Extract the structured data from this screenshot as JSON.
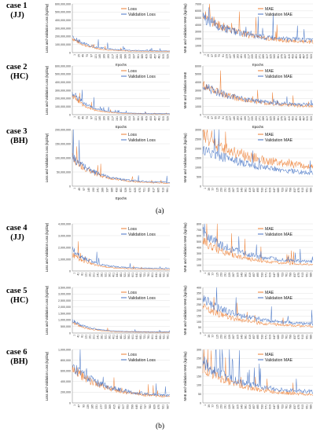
{
  "colors": {
    "train": "#ED7D31",
    "validation": "#4472C4",
    "grid": "#D9D9D9",
    "axis": "#808080"
  },
  "panel_labels": [
    "(a)",
    "(b)"
  ],
  "cases": [
    {
      "title": "case 1",
      "code": "(JJ)"
    },
    {
      "title": "case 2",
      "code": "(HC)"
    },
    {
      "title": "case 3",
      "code": "(BH)"
    },
    {
      "title": "case 4",
      "code": "(JJ)"
    },
    {
      "title": "case 5",
      "code": "(HC)"
    },
    {
      "title": "case 6",
      "code": "(BH)"
    }
  ],
  "chart_data": [
    {
      "type": "line",
      "case": "case 1",
      "metric": "loss",
      "xlabel": "Epochs",
      "ylabel": "Loss and Validation Loss (kg/day)",
      "yticks": [
        "600,000,000",
        "500,000,000",
        "400,000,000",
        "300,000,000",
        "200,000,000",
        "100,000,000",
        "0"
      ],
      "ylim": [
        0,
        600000000
      ],
      "xticks": [
        "1",
        "25",
        "49",
        "73",
        "97",
        "121",
        "145",
        "169",
        "193",
        "217",
        "241",
        "265",
        "289",
        "313",
        "337",
        "361",
        "385",
        "409",
        "433",
        "457",
        "481",
        "505",
        "529"
      ],
      "series": [
        {
          "name": "Loss",
          "start": 180000000,
          "end": 15000000,
          "decay": 6
        },
        {
          "name": "Validation Loss",
          "start": 190000000,
          "end": 20000000,
          "decay": 5
        }
      ],
      "legend_position": "top-right"
    },
    {
      "type": "line",
      "case": "case 1",
      "metric": "mae",
      "xlabel": "Epochs",
      "ylabel": "MAE and Validation MAE (kg/day)",
      "yticks": [
        "7000",
        "6000",
        "5000",
        "4000",
        "3000",
        "2000",
        "1000",
        "0"
      ],
      "ylim": [
        0,
        7000
      ],
      "xticks": [
        "1",
        "19",
        "37",
        "55",
        "73",
        "91",
        "109",
        "127",
        "145",
        "163",
        "181",
        "199",
        "217",
        "235",
        "253",
        "271",
        "289",
        "307",
        "325",
        "343",
        "361",
        "379",
        "397",
        "415",
        "433",
        "451",
        "469",
        "487",
        "505",
        "523"
      ],
      "series": [
        {
          "name": "MAE",
          "start": 5500,
          "end": 1300,
          "decay": 3
        },
        {
          "name": "Validation MAE",
          "start": 5000,
          "end": 1600,
          "decay": 3
        }
      ],
      "legend_position": "top-right"
    },
    {
      "type": "line",
      "case": "case 2",
      "metric": "loss",
      "xlabel": "Epochs",
      "ylabel": "Loss and Validation Loss (kg/day)",
      "yticks": [
        "600,000,000",
        "500,000,000",
        "400,000,000",
        "300,000,000",
        "200,000,000",
        "100,000,000",
        "0"
      ],
      "ylim": [
        0,
        600000000
      ],
      "xticks": [
        "1",
        "25",
        "49",
        "73",
        "97",
        "121",
        "145",
        "169",
        "193",
        "217",
        "241",
        "265",
        "289",
        "313",
        "337",
        "361",
        "385",
        "409",
        "433",
        "457",
        "481",
        "505",
        "529"
      ],
      "series": [
        {
          "name": "Loss",
          "start": 250000000,
          "end": 10000000,
          "decay": 7
        },
        {
          "name": "Validation Loss",
          "start": 280000000,
          "end": 12000000,
          "decay": 6
        }
      ],
      "legend_position": "top-right"
    },
    {
      "type": "line",
      "case": "case 2",
      "metric": "mae",
      "xlabel": "Epochs",
      "ylabel": "MAE and Validation MAE",
      "yticks": [
        "6000",
        "5000",
        "4000",
        "3000",
        "2000",
        "1000",
        "0"
      ],
      "ylim": [
        0,
        6000
      ],
      "xticks": [
        "1",
        "19",
        "37",
        "55",
        "73",
        "91",
        "109",
        "127",
        "145",
        "163",
        "181",
        "199",
        "217",
        "235",
        "253",
        "271",
        "289",
        "307",
        "325",
        "343",
        "361",
        "379",
        "397",
        "415",
        "433",
        "451",
        "469",
        "487",
        "505",
        "523"
      ],
      "series": [
        {
          "name": "MAE",
          "start": 3800,
          "end": 900,
          "decay": 3
        },
        {
          "name": "Validation MAE",
          "start": 3600,
          "end": 1100,
          "decay": 3
        }
      ],
      "legend_position": "top-right"
    },
    {
      "type": "line",
      "case": "case 3",
      "metric": "loss",
      "xlabel": "Epochs",
      "ylabel": "Loss and Validation Loss (kg/day)",
      "yticks": [
        "200,000,000",
        "150,000,000",
        "100,000,000",
        "50,000,000",
        "0"
      ],
      "ylim": [
        0,
        200000000
      ],
      "xticks": [
        "1",
        "49",
        "97",
        "145",
        "193",
        "241",
        "289",
        "337",
        "385",
        "433",
        "481",
        "529",
        "577",
        "625",
        "673",
        "721",
        "769",
        "817",
        "865",
        "913",
        "961"
      ],
      "series": [
        {
          "name": "Loss",
          "start": 100000000,
          "end": 9000000,
          "decay": 4
        },
        {
          "name": "Validation Loss",
          "start": 105000000,
          "end": 12000000,
          "decay": 4
        }
      ],
      "legend_position": "top-right"
    },
    {
      "type": "line",
      "case": "case 3",
      "metric": "mae",
      "xlabel": "",
      "ylabel": "MAE and Validation MAE (kg/day)",
      "yticks": [
        "3000",
        "2500",
        "2000",
        "1500",
        "1000",
        "500",
        "0"
      ],
      "ylim": [
        0,
        3000
      ],
      "xticks": [
        "1",
        "39",
        "77",
        "115",
        "153",
        "191",
        "229",
        "267",
        "305",
        "343",
        "381",
        "419",
        "457",
        "495",
        "533",
        "571",
        "609",
        "647",
        "685",
        "723",
        "761",
        "799",
        "837",
        "875",
        "913",
        "951",
        "989"
      ],
      "series": [
        {
          "name": "MAE",
          "start": 2600,
          "end": 800,
          "decay": 2
        },
        {
          "name": "Validation MAE",
          "start": 2000,
          "end": 500,
          "decay": 2
        }
      ],
      "legend_position": "top-right"
    },
    {
      "type": "line",
      "case": "case 4",
      "metric": "loss",
      "xlabel": "",
      "ylabel": "Loss and Validation Loss (kg/day)",
      "yticks": [
        "4,000,000",
        "3,000,000",
        "2,000,000",
        "1,000,000",
        "0"
      ],
      "ylim": [
        0,
        4000000
      ],
      "xticks": [
        "1",
        "41",
        "81",
        "121",
        "161",
        "201",
        "241",
        "281",
        "321",
        "361",
        "401",
        "441",
        "481",
        "521",
        "561",
        "601",
        "641",
        "681",
        "721",
        "761",
        "801",
        "841",
        "881",
        "921",
        "961"
      ],
      "series": [
        {
          "name": "Loss",
          "start": 1400000,
          "end": 120000,
          "decay": 5
        },
        {
          "name": "Validation Loss",
          "start": 1800000,
          "end": 200000,
          "decay": 5
        }
      ],
      "legend_position": "top-right"
    },
    {
      "type": "line",
      "case": "case 4",
      "metric": "mae",
      "xlabel": "",
      "ylabel": "MAE and Validation MAE (kg/day)",
      "yticks": [
        "800",
        "700",
        "600",
        "500",
        "400",
        "300",
        "200",
        "100",
        "0"
      ],
      "ylim": [
        0,
        800
      ],
      "xticks": [
        "1",
        "39",
        "77",
        "115",
        "153",
        "191",
        "229",
        "267",
        "305",
        "343",
        "381",
        "419",
        "457",
        "495",
        "533",
        "571",
        "609",
        "647",
        "685",
        "723",
        "761",
        "799",
        "837",
        "875",
        "913",
        "951",
        "989"
      ],
      "series": [
        {
          "name": "MAE",
          "start": 500,
          "end": 90,
          "decay": 3
        },
        {
          "name": "Validation MAE",
          "start": 650,
          "end": 130,
          "decay": 3
        }
      ],
      "legend_position": "top-right"
    },
    {
      "type": "line",
      "case": "case 5",
      "metric": "loss",
      "xlabel": "",
      "ylabel": "Loss and Validation Loss (kg/day)",
      "yticks": [
        "3,500,000",
        "3,000,000",
        "2,500,000",
        "2,000,000",
        "1,500,000",
        "1,000,000",
        "500,000",
        "0"
      ],
      "ylim": [
        0,
        3500000
      ],
      "xticks": [
        "1",
        "41",
        "81",
        "121",
        "161",
        "201",
        "241",
        "281",
        "321",
        "361",
        "401",
        "441",
        "481",
        "521",
        "561",
        "601",
        "641",
        "681",
        "721",
        "761",
        "801",
        "841",
        "881",
        "921",
        "961"
      ],
      "series": [
        {
          "name": "Loss",
          "start": 800000,
          "end": 60000,
          "decay": 6
        },
        {
          "name": "Validation Loss",
          "start": 1000000,
          "end": 90000,
          "decay": 6
        }
      ],
      "legend_position": "top-right"
    },
    {
      "type": "line",
      "case": "case 5",
      "metric": "mae",
      "xlabel": "",
      "ylabel": "MAE and Validation MAE (kg/day)",
      "yticks": [
        "400",
        "350",
        "300",
        "250",
        "200",
        "150",
        "100",
        "50",
        "0"
      ],
      "ylim": [
        0,
        400
      ],
      "xticks": [
        "1",
        "39",
        "77",
        "115",
        "153",
        "191",
        "229",
        "267",
        "305",
        "343",
        "381",
        "419",
        "457",
        "495",
        "533",
        "571",
        "609",
        "647",
        "685",
        "723",
        "761",
        "799",
        "837",
        "875",
        "913",
        "951",
        "989"
      ],
      "series": [
        {
          "name": "MAE",
          "start": 230,
          "end": 50,
          "decay": 3
        },
        {
          "name": "Validation MAE",
          "start": 300,
          "end": 70,
          "decay": 3
        }
      ],
      "legend_position": "top-right"
    },
    {
      "type": "line",
      "case": "case 6",
      "metric": "loss",
      "xlabel": "",
      "ylabel": "Loss and Validation Loss (kg/day)",
      "yticks": [
        "1,000,000",
        "800,000",
        "600,000",
        "400,000",
        "200,000",
        "0"
      ],
      "ylim": [
        0,
        1000000
      ],
      "xticks": [
        "1",
        "47",
        "93",
        "139",
        "185",
        "231",
        "277",
        "323",
        "369",
        "415",
        "461",
        "507",
        "553",
        "599",
        "645",
        "691",
        "737",
        "783",
        "829",
        "875",
        "921",
        "967"
      ],
      "series": [
        {
          "name": "Loss",
          "start": 650000,
          "end": 90000,
          "decay": 3
        },
        {
          "name": "Validation Loss",
          "start": 700000,
          "end": 110000,
          "decay": 3
        }
      ],
      "legend_position": "top-right"
    },
    {
      "type": "line",
      "case": "case 6",
      "metric": "mae",
      "xlabel": "",
      "ylabel": "MAE and Validation MAE (kg/day)",
      "yticks": [
        "300",
        "250",
        "200",
        "150",
        "100",
        "50",
        "0"
      ],
      "ylim": [
        0,
        300
      ],
      "xticks": [
        "1",
        "39",
        "77",
        "115",
        "153",
        "191",
        "229",
        "267",
        "305",
        "343",
        "381",
        "419",
        "457",
        "495",
        "533",
        "571",
        "609",
        "647",
        "685",
        "723",
        "761",
        "799",
        "837",
        "875",
        "913",
        "951",
        "989"
      ],
      "series": [
        {
          "name": "MAE",
          "start": 200,
          "end": 40,
          "decay": 3
        },
        {
          "name": "Validation MAE",
          "start": 230,
          "end": 55,
          "decay": 3
        }
      ],
      "legend_position": "top-right"
    }
  ]
}
